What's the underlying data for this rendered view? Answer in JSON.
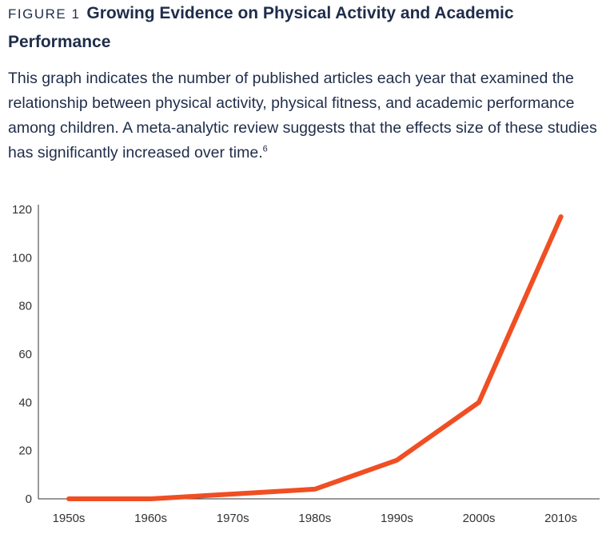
{
  "figure": {
    "label": "FIGURE 1",
    "title": "Growing Evidence on Physical Activity and Academic Performance",
    "description": "This graph indicates the number of published articles each year that examined the relationship between physical activity, physical fitness, and academic performance among children. A meta-analytic review suggests that the effects size of these studies has significantly increased over time.",
    "footnote_ref": "6"
  },
  "colors": {
    "line": "#f04e23",
    "axis": "#333333",
    "text": "#1f2d4a"
  },
  "chart_data": {
    "type": "line",
    "title": "",
    "xlabel": "",
    "ylabel": "",
    "categories": [
      "1950s",
      "1960s",
      "1970s",
      "1980s",
      "1990s",
      "2000s",
      "2010s"
    ],
    "series": [
      {
        "values": [
          0,
          0,
          2,
          4,
          16,
          40,
          117
        ]
      }
    ],
    "ylim": [
      0,
      120
    ],
    "yticks": [
      "0",
      "20",
      "40",
      "60",
      "80",
      "100",
      "120"
    ],
    "grid": false,
    "legend": "none"
  }
}
